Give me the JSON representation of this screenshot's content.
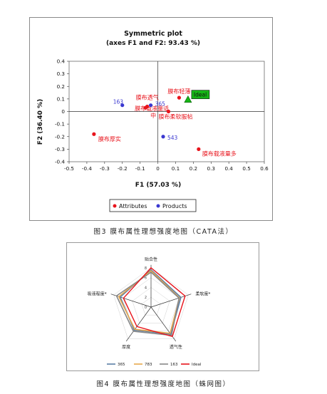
{
  "figure1": {
    "title_line1": "Symmetric plot",
    "title_line2": "(axes F1 and F2: 93.43 %)",
    "xlabel": "F1 (57.03 %)",
    "ylabel": "F2 (36.40 %)",
    "legend": {
      "attributes": "Attributes",
      "products": "Products"
    },
    "caption": "图3  膜布属性理想强度地图（CATA法）"
  },
  "figure2": {
    "caption": "图4  膜布属性理想强度地图（蛛网图）"
  },
  "colors": {
    "attributes": "#e8141c",
    "products": "#3a38d0",
    "ideal_fill": "#16b516",
    "s365": "#5b7fa6",
    "s783": "#e8a84c",
    "s163": "#888888",
    "ideal_line": "#e8141c"
  },
  "chart_data": [
    {
      "type": "scatter",
      "title": "Symmetric plot",
      "subtitle": "(axes F1 and F2: 93.43 %)",
      "xlabel": "F1 (57.03 %)",
      "ylabel": "F2 (36.40 %)",
      "xlim": [
        -0.5,
        0.6
      ],
      "ylim": [
        -0.4,
        0.4
      ],
      "x_ticks": [
        -0.5,
        -0.4,
        -0.3,
        -0.2,
        -0.1,
        0,
        0.1,
        0.2,
        0.3,
        0.4,
        0.5,
        0.6
      ],
      "y_ticks": [
        -0.4,
        -0.3,
        -0.2,
        -0.1,
        0,
        0.1,
        0.2,
        0.3,
        0.4
      ],
      "x_tick_labels": [
        "-0.5",
        "-0.4",
        "-0.3",
        "-0.2",
        "-0.1",
        "0",
        "0.1",
        "0.2",
        "0.3",
        "0.4",
        "0.5",
        "0.6"
      ],
      "y_tick_labels": [
        "-0.4",
        "-0.3",
        "-0.2",
        "-0.1",
        "0",
        "0.1",
        "0.2",
        "0.3",
        "0.4"
      ],
      "legend_position": "bottom",
      "series": [
        {
          "name": "Attributes",
          "points": [
            {
              "label": "膜布轻薄",
              "x": 0.12,
              "y": 0.11
            },
            {
              "label": "膜布透气",
              "x": -0.06,
              "y": 0.04
            },
            {
              "label": "膜布载液量适中",
              "x": -0.07,
              "y": 0.03
            },
            {
              "label": "膜布柔软服帖",
              "x": 0.06,
              "y": 0.0
            },
            {
              "label": "膜布厚实",
              "x": -0.36,
              "y": -0.18
            },
            {
              "label": "膜布载液量多",
              "x": 0.23,
              "y": -0.3
            }
          ]
        },
        {
          "name": "Products",
          "points": [
            {
              "label": "163",
              "x": -0.2,
              "y": 0.05
            },
            {
              "label": "365",
              "x": -0.04,
              "y": 0.05
            },
            {
              "label": "543",
              "x": 0.03,
              "y": -0.2
            }
          ]
        }
      ],
      "ideal": {
        "label": "Ideal",
        "x": 0.17,
        "y": 0.09
      }
    },
    {
      "type": "radar",
      "axes": [
        "贴合性",
        "柔软度*",
        "透气性",
        "厚度",
        "吸液程度*"
      ],
      "scale_ticks": [
        "0",
        "2",
        "4",
        "6",
        "8"
      ],
      "rmax": 9,
      "series": [
        {
          "name": "365",
          "values": [
            7.6,
            6.4,
            6.8,
            5.8,
            6.6
          ]
        },
        {
          "name": "783",
          "values": [
            7.4,
            6.1,
            6.6,
            5.6,
            6.9
          ]
        },
        {
          "name": "163",
          "values": [
            7.1,
            6.0,
            7.1,
            6.1,
            7.4
          ]
        },
        {
          "name": "Ideal",
          "values": [
            8.0,
            7.3,
            7.4,
            4.9,
            5.9
          ]
        }
      ]
    }
  ]
}
